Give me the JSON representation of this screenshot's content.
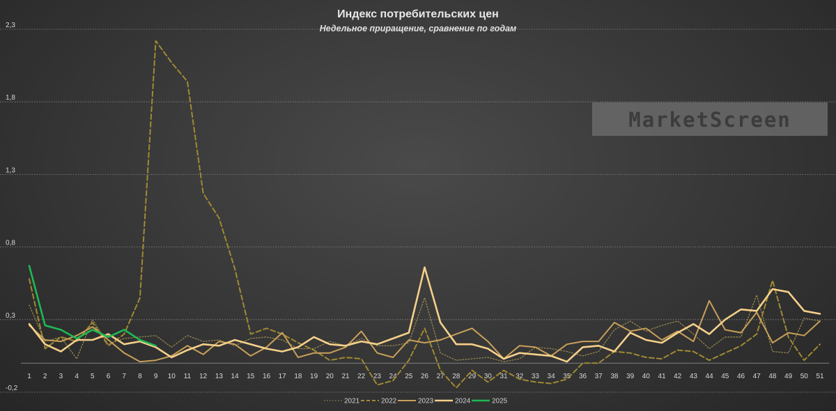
{
  "chart_data": {
    "type": "line",
    "title": "Индекс потребительских цен",
    "subtitle": "Недельное приращение, сравнение по годам",
    "xlabel": "",
    "ylabel": "",
    "ylim": [
      -0.2,
      2.3
    ],
    "yticks": [
      "-0,2",
      "0,3",
      "0,8",
      "1,3",
      "1,8",
      "2,3"
    ],
    "ytick_values": [
      -0.2,
      0.3,
      0.8,
      1.3,
      1.8,
      2.3
    ],
    "grid": true,
    "legend_position": "bottom",
    "categories": [
      "1",
      "2",
      "3",
      "4",
      "5",
      "6",
      "7",
      "8",
      "9",
      "10",
      "11",
      "12",
      "13",
      "14",
      "15",
      "16",
      "17",
      "18",
      "19",
      "20",
      "21",
      "22",
      "23",
      "24",
      "25",
      "26",
      "27",
      "28",
      "29",
      "30",
      "31",
      "32",
      "33",
      "34",
      "35",
      "36",
      "37",
      "38",
      "39",
      "40",
      "41",
      "42",
      "43",
      "44",
      "45",
      "46",
      "47",
      "48",
      "49",
      "50",
      "51"
    ],
    "series": [
      {
        "name": "2021",
        "color": "#9a8a4e",
        "style": "dotted",
        "width": 1.3,
        "values": [
          0.4,
          0.15,
          0.18,
          0.03,
          0.3,
          0.13,
          0.17,
          0.18,
          0.19,
          0.11,
          0.19,
          0.15,
          0.16,
          0.12,
          0.17,
          0.18,
          0.16,
          0.1,
          0.1,
          0.15,
          0.12,
          0.17,
          0.12,
          0.12,
          0.14,
          0.45,
          0.07,
          0.02,
          0.03,
          0.04,
          0.01,
          0.03,
          0.11,
          0.1,
          0.08,
          0.05,
          0.08,
          0.23,
          0.29,
          0.22,
          0.26,
          0.29,
          0.2,
          0.1,
          0.18,
          0.18,
          0.47,
          0.08,
          0.07,
          0.31,
          0.29
        ]
      },
      {
        "name": "2022",
        "color": "#a08a32",
        "style": "dashed",
        "width": 2,
        "values": [
          0.58,
          0.1,
          0.18,
          0.15,
          0.28,
          0.12,
          0.2,
          0.45,
          2.22,
          2.07,
          1.94,
          1.17,
          1.0,
          0.65,
          0.2,
          0.24,
          0.2,
          0.14,
          0.09,
          0.02,
          0.04,
          0.03,
          -0.15,
          -0.12,
          0.02,
          0.24,
          -0.05,
          -0.17,
          -0.05,
          -0.13,
          -0.05,
          -0.11,
          -0.13,
          -0.14,
          -0.11,
          0.0,
          0.0,
          0.08,
          0.07,
          0.04,
          0.03,
          0.09,
          0.08,
          0.02,
          0.07,
          0.12,
          0.2,
          0.57,
          0.18,
          0.02,
          0.13
        ]
      },
      {
        "name": "2023",
        "color": "#c9a05a",
        "style": "solid",
        "width": 2,
        "values": [
          0.26,
          0.16,
          0.15,
          0.19,
          0.25,
          0.16,
          0.07,
          0.01,
          0.02,
          0.05,
          0.12,
          0.06,
          0.15,
          0.13,
          0.05,
          0.11,
          0.21,
          0.04,
          0.07,
          0.07,
          0.11,
          0.22,
          0.07,
          0.04,
          0.16,
          0.14,
          0.16,
          0.2,
          0.24,
          0.15,
          0.03,
          0.12,
          0.11,
          0.05,
          0.13,
          0.15,
          0.15,
          0.28,
          0.22,
          0.24,
          0.16,
          0.22,
          0.15,
          0.43,
          0.23,
          0.21,
          0.35,
          0.14,
          0.21,
          0.19,
          0.29
        ]
      },
      {
        "name": "2024",
        "color": "#f5d08a",
        "style": "solid",
        "width": 2.6,
        "values": [
          0.27,
          0.13,
          0.08,
          0.16,
          0.16,
          0.2,
          0.13,
          0.15,
          0.11,
          0.04,
          0.09,
          0.13,
          0.12,
          0.16,
          0.13,
          0.1,
          0.08,
          0.11,
          0.18,
          0.13,
          0.12,
          0.15,
          0.13,
          0.17,
          0.21,
          0.66,
          0.28,
          0.13,
          0.13,
          0.1,
          0.03,
          0.07,
          0.06,
          0.05,
          0.01,
          0.11,
          0.12,
          0.08,
          0.21,
          0.16,
          0.14,
          0.21,
          0.27,
          0.2,
          0.3,
          0.37,
          0.36,
          0.51,
          0.49,
          0.36,
          0.34
        ]
      },
      {
        "name": "2025",
        "color": "#1db954",
        "style": "solid",
        "width": 2.6,
        "values": [
          0.67,
          0.26,
          0.23,
          0.17,
          0.23,
          0.18,
          0.23,
          0.16,
          0.12,
          null,
          null,
          null,
          null,
          null,
          null,
          null,
          null,
          null,
          null,
          null,
          null,
          null,
          null,
          null,
          null,
          null,
          null,
          null,
          null,
          null,
          null,
          null,
          null,
          null,
          null,
          null,
          null,
          null,
          null,
          null,
          null,
          null,
          null,
          null,
          null,
          null,
          null,
          null,
          null,
          null,
          null
        ]
      }
    ]
  },
  "watermark": "MarketScreen"
}
